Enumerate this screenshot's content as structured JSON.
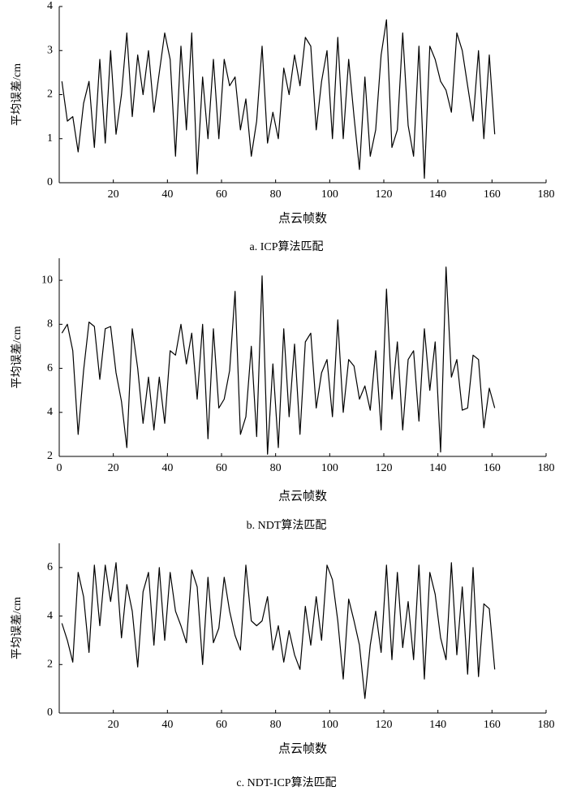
{
  "chart_data": [
    {
      "type": "line",
      "caption": "a.  ICP算法匹配",
      "xlabel": "点云帧数",
      "ylabel": "平均误差/cm",
      "color": "#000000",
      "x": [
        1,
        3,
        5,
        7,
        9,
        11,
        13,
        15,
        17,
        19,
        21,
        23,
        25,
        27,
        29,
        31,
        33,
        35,
        37,
        39,
        41,
        43,
        45,
        47,
        49,
        51,
        53,
        55,
        57,
        59,
        61,
        63,
        65,
        67,
        69,
        71,
        73,
        75,
        77,
        79,
        81,
        83,
        85,
        87,
        89,
        91,
        93,
        95,
        97,
        99,
        101,
        103,
        105,
        107,
        109,
        111,
        113,
        115,
        117,
        119,
        121,
        123,
        125,
        127,
        129,
        131,
        133,
        135,
        137,
        139,
        141,
        143,
        145,
        147,
        149,
        151,
        153,
        155,
        157,
        159,
        161
      ],
      "values": [
        2.3,
        1.4,
        1.5,
        0.7,
        1.8,
        2.3,
        0.8,
        2.8,
        0.9,
        3.0,
        1.1,
        2.0,
        3.4,
        1.5,
        2.9,
        2.0,
        3.0,
        1.6,
        2.5,
        3.4,
        2.8,
        0.6,
        3.1,
        1.2,
        3.4,
        0.2,
        2.4,
        1.0,
        2.8,
        1.0,
        2.8,
        2.2,
        2.4,
        1.2,
        1.9,
        0.6,
        1.4,
        3.1,
        0.9,
        1.6,
        1.0,
        2.6,
        2.0,
        2.9,
        2.2,
        3.3,
        3.1,
        1.2,
        2.3,
        3.0,
        1.0,
        3.3,
        1.0,
        2.8,
        1.5,
        0.3,
        2.4,
        0.6,
        1.2,
        2.9,
        3.7,
        0.8,
        1.2,
        3.4,
        1.3,
        0.6,
        3.1,
        0.1,
        3.1,
        2.8,
        2.3,
        2.1,
        1.6,
        3.4,
        3.0,
        2.2,
        1.4,
        3.0,
        1.0,
        2.9,
        1.1
      ],
      "xlim": [
        0,
        180
      ],
      "xticks": [
        20,
        40,
        60,
        80,
        100,
        120,
        140,
        160,
        180
      ],
      "ylim": [
        0,
        4
      ],
      "yticks": [
        0,
        1,
        2,
        3,
        4
      ]
    },
    {
      "type": "line",
      "caption": "b.  NDT算法匹配",
      "xlabel": "点云帧数",
      "ylabel": "平均误差/cm",
      "color": "#000000",
      "x": [
        1,
        3,
        5,
        7,
        9,
        11,
        13,
        15,
        17,
        19,
        21,
        23,
        25,
        27,
        29,
        31,
        33,
        35,
        37,
        39,
        41,
        43,
        45,
        47,
        49,
        51,
        53,
        55,
        57,
        59,
        61,
        63,
        65,
        67,
        69,
        71,
        73,
        75,
        77,
        79,
        81,
        83,
        85,
        87,
        89,
        91,
        93,
        95,
        97,
        99,
        101,
        103,
        105,
        107,
        109,
        111,
        113,
        115,
        117,
        119,
        121,
        123,
        125,
        127,
        129,
        131,
        133,
        135,
        137,
        139,
        141,
        143,
        145,
        147,
        149,
        151,
        153,
        155,
        157,
        159,
        161
      ],
      "values": [
        7.6,
        8.0,
        6.8,
        3.0,
        5.9,
        8.1,
        7.9,
        5.5,
        7.8,
        7.9,
        5.8,
        4.5,
        2.4,
        7.8,
        6.0,
        3.5,
        5.6,
        3.2,
        5.6,
        3.5,
        6.8,
        6.6,
        8.0,
        6.2,
        7.6,
        4.6,
        8.0,
        2.8,
        7.8,
        4.2,
        4.6,
        5.9,
        9.5,
        3.0,
        3.8,
        7.0,
        2.9,
        10.2,
        2.1,
        6.2,
        2.4,
        7.8,
        3.8,
        7.1,
        3.0,
        7.2,
        7.6,
        4.2,
        5.8,
        6.4,
        3.8,
        8.2,
        4.0,
        6.4,
        6.1,
        4.6,
        5.2,
        4.1,
        6.8,
        3.2,
        9.6,
        4.6,
        7.2,
        3.2,
        6.4,
        6.8,
        3.6,
        7.8,
        5.0,
        7.2,
        2.2,
        10.6,
        5.6,
        6.4,
        4.1,
        4.2,
        6.6,
        6.4,
        3.3,
        5.1,
        4.2
      ],
      "xlim": [
        0,
        180
      ],
      "xticks": [
        0,
        20,
        40,
        60,
        80,
        100,
        120,
        140,
        160,
        180
      ],
      "ylim": [
        2,
        11
      ],
      "yticks": [
        2,
        4,
        6,
        8,
        10
      ]
    },
    {
      "type": "line",
      "caption": "c.  NDT-ICP算法匹配",
      "xlabel": "点云帧数",
      "ylabel": "平均误差/cm",
      "color": "#000000",
      "x": [
        1,
        3,
        5,
        7,
        9,
        11,
        13,
        15,
        17,
        19,
        21,
        23,
        25,
        27,
        29,
        31,
        33,
        35,
        37,
        39,
        41,
        43,
        45,
        47,
        49,
        51,
        53,
        55,
        57,
        59,
        61,
        63,
        65,
        67,
        69,
        71,
        73,
        75,
        77,
        79,
        81,
        83,
        85,
        87,
        89,
        91,
        93,
        95,
        97,
        99,
        101,
        103,
        105,
        107,
        109,
        111,
        113,
        115,
        117,
        119,
        121,
        123,
        125,
        127,
        129,
        131,
        133,
        135,
        137,
        139,
        141,
        143,
        145,
        147,
        149,
        151,
        153,
        155,
        157,
        159,
        161
      ],
      "values": [
        3.7,
        3.0,
        2.1,
        5.8,
        4.8,
        2.5,
        6.1,
        3.6,
        6.1,
        4.6,
        6.2,
        3.1,
        5.3,
        4.2,
        1.9,
        5.0,
        5.8,
        2.8,
        6.0,
        3.0,
        5.8,
        4.2,
        3.6,
        2.9,
        5.9,
        5.2,
        2.0,
        5.6,
        2.9,
        3.5,
        5.6,
        4.2,
        3.2,
        2.6,
        6.1,
        3.8,
        3.6,
        3.8,
        4.8,
        2.6,
        3.6,
        2.1,
        3.4,
        2.4,
        1.8,
        4.4,
        2.8,
        4.8,
        3.0,
        6.1,
        5.5,
        3.8,
        1.4,
        4.7,
        3.8,
        2.8,
        0.6,
        2.8,
        4.2,
        2.5,
        6.1,
        2.2,
        5.8,
        2.7,
        4.6,
        2.2,
        6.1,
        1.4,
        5.8,
        4.9,
        3.1,
        2.2,
        6.2,
        2.4,
        5.2,
        1.6,
        6.0,
        1.5,
        4.5,
        4.3,
        1.8
      ],
      "xlim": [
        0,
        180
      ],
      "xticks": [
        20,
        40,
        60,
        80,
        100,
        120,
        140,
        160,
        180
      ],
      "ylim": [
        0,
        7
      ],
      "yticks": [
        0,
        2,
        4,
        6
      ]
    }
  ]
}
